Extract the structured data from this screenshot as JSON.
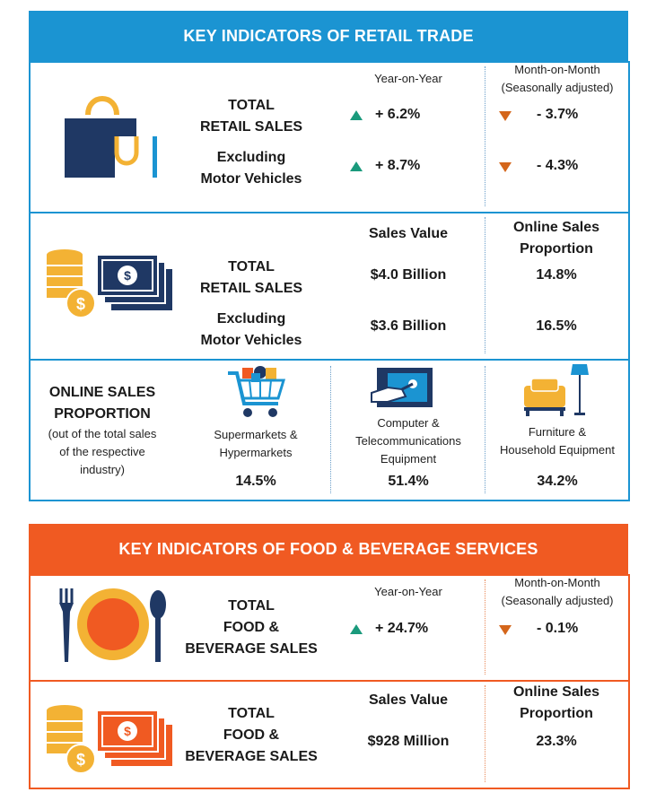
{
  "retail": {
    "header": "KEY INDICATORS OF RETAIL TRADE",
    "yoy_label": "Year-on-Year",
    "mom_label": "Month-on-Month",
    "mom_sub": "(Seasonally adjusted)",
    "total_label_1": "TOTAL",
    "total_label_2": "RETAIL SALES",
    "excl_label_1": "Excluding",
    "excl_label_2": "Motor Vehicles",
    "total_yoy": "+ 6.2%",
    "total_mom": "- 3.7%",
    "excl_yoy": "+ 8.7%",
    "excl_mom": "- 4.3%",
    "sales_value_label": "Sales Value",
    "online_label_1": "Online Sales",
    "online_label_2": "Proportion",
    "total_value": "$4.0 Billion",
    "total_online": "14.8%",
    "excl_value": "$3.6 Billion",
    "excl_online": "16.5%",
    "osp_title_1": "ONLINE SALES",
    "osp_title_2": "PROPORTION",
    "osp_note_1": "(out of the total sales",
    "osp_note_2": "of the respective",
    "osp_note_3": "industry)",
    "cat1_l1": "Supermarkets &",
    "cat1_l2": "Hypermarkets",
    "cat1_val": "14.5%",
    "cat2_l1": "Computer &",
    "cat2_l2": "Telecommunications",
    "cat2_l3": "Equipment",
    "cat2_val": "51.4%",
    "cat3_l1": "Furniture &",
    "cat3_l2": "Household Equipment",
    "cat3_val": "34.2%"
  },
  "fnb": {
    "header": "KEY INDICATORS OF FOOD & BEVERAGE SERVICES",
    "yoy_label": "Year-on-Year",
    "mom_label": "Month-on-Month",
    "mom_sub": "(Seasonally adjusted)",
    "label_1": "TOTAL",
    "label_2": "FOOD &",
    "label_3": "BEVERAGE SALES",
    "yoy": "+ 24.7%",
    "mom": "- 0.1%",
    "sales_value_label": "Sales Value",
    "online_label_1": "Online Sales",
    "online_label_2": "Proportion",
    "value": "$928 Million",
    "online": "23.3%"
  },
  "colors": {
    "blue": "#1b94d2",
    "orange": "#f05a22",
    "navy": "#1f3864",
    "gold": "#f3b234",
    "up": "#1a9a7c",
    "down": "#d4661b"
  }
}
